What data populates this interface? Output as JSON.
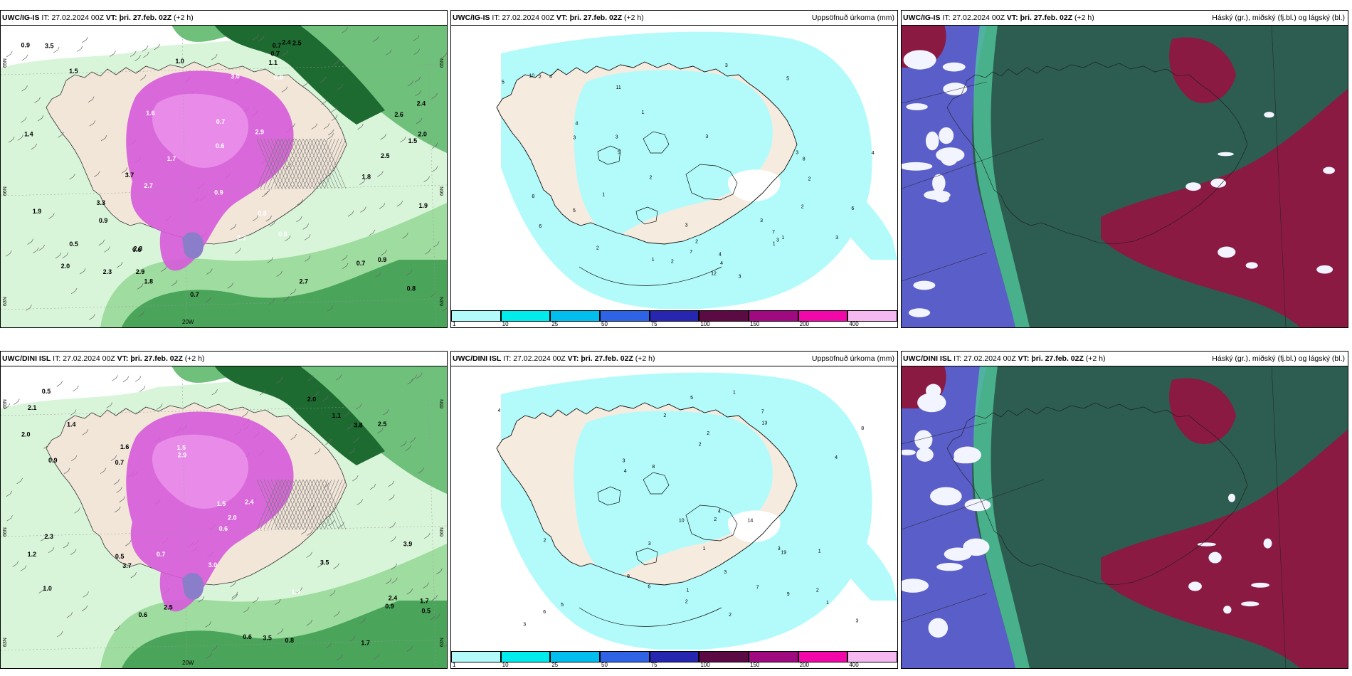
{
  "panels": [
    {
      "id": "p1",
      "model": "UWC/IG-IS",
      "it_label": "IT:",
      "it": "27.02.2024 00Z",
      "vt_label": "VT:",
      "vt": "þri. 27.feb. 02Z",
      "lead": "(+2 h)",
      "title": "",
      "type": "precip-rate",
      "lon_label": "20W",
      "lat_labels": [
        "65N",
        "66N",
        "63N"
      ]
    },
    {
      "id": "p2",
      "model": "UWC/IG-IS",
      "it_label": "IT:",
      "it": "27.02.2024 00Z",
      "vt_label": "VT:",
      "vt": "þri. 27.feb. 02Z",
      "lead": "(+2 h)",
      "title": "Uppsöfnuð úrkoma (mm)",
      "type": "accum"
    },
    {
      "id": "p3",
      "model": "UWC/IG-IS",
      "it_label": "IT:",
      "it": "27.02.2024 00Z",
      "vt_label": "VT:",
      "vt": "þri. 27.feb. 02Z",
      "lead": "(+2 h)",
      "title": "Háský (gr.), miðský (fj.bl.) og lágský (bl.)",
      "type": "cloud"
    },
    {
      "id": "p4",
      "model": "UWC/DINI ISL",
      "it_label": "IT:",
      "it": "27.02.2024 00Z",
      "vt_label": "VT:",
      "vt": "þri. 27.feb. 02Z",
      "lead": "(+2 h)",
      "title": "",
      "type": "precip-rate",
      "lon_label": "20W",
      "lat_labels": [
        "65N",
        "66N",
        "63N"
      ]
    },
    {
      "id": "p5",
      "model": "UWC/DINI ISL",
      "it_label": "IT:",
      "it": "27.02.2024 00Z",
      "vt_label": "VT:",
      "vt": "þri. 27.feb. 02Z",
      "lead": "(+2 h)",
      "title": "Uppsöfnuð úrkoma (mm)",
      "type": "accum"
    },
    {
      "id": "p6",
      "model": "UWC/DINI ISL",
      "it_label": "IT:",
      "it": "27.02.2024 00Z",
      "vt_label": "VT:",
      "vt": "þri. 27.feb. 02Z",
      "lead": "(+2 h)",
      "title": "Háský (gr.), miðský (fj.bl.) og lágský (bl.)",
      "type": "cloud"
    }
  ],
  "colorbar": {
    "ticks": [
      "1",
      "10",
      "25",
      "50",
      "75",
      "100",
      "150",
      "200",
      "400"
    ],
    "colors": [
      "#b3fbfb",
      "#00ecec",
      "#00bfee",
      "#2f63e6",
      "#2626b0",
      "#5b0a44",
      "#a00a80",
      "#f207a8",
      "#f5b8f0"
    ]
  },
  "precip_labels_p1": [
    "0.7",
    "0.9",
    "0.9",
    "1.4",
    "1.7",
    "0.7",
    "0.9",
    "0.5",
    "0.6",
    "0.7",
    "2.0",
    "2.3",
    "3.3",
    "2.4",
    "2.6",
    "2.7",
    "1.9",
    "1.5",
    "3.7",
    "2.5",
    "2.0",
    "2.8",
    "1.8",
    "2.7",
    "3.5",
    "2.5",
    "1.6",
    "1.9",
    "1.5",
    "1.8",
    "2.9",
    "0.8",
    "0.6",
    "1.0",
    "0.8",
    "1.1",
    "0.8",
    "3.0",
    "2.9",
    "2.3",
    "2.4",
    "0.9",
    "0.7",
    "0.6",
    "0.7"
  ],
  "precip_labels_p4": [
    "1.5",
    "1.1",
    "0.7",
    "0.5",
    "1.6",
    "0.5",
    "0.6",
    "2.3",
    "1.9",
    "3.5",
    "2.4",
    "2.5",
    "1.4",
    "2.0",
    "0.6",
    "1.0",
    "3.8",
    "1.5",
    "2.4",
    "3.7",
    "2.9",
    "3.9",
    "2.0",
    "1.7",
    "2.0",
    "3.0",
    "1.2",
    "0.5",
    "0.9",
    "0.7",
    "0.8",
    "0.6",
    "0.9",
    "2.5",
    "2.1",
    "3.5",
    "1.7"
  ],
  "accum_labels_p2": [
    "1",
    "2",
    "3",
    "5",
    "4",
    "6",
    "7",
    "8",
    "3",
    "4",
    "5",
    "3",
    "2",
    "3",
    "5",
    "4",
    "7",
    "3",
    "6",
    "8",
    "4",
    "2",
    "3",
    "5",
    "4",
    "2",
    "3",
    "12",
    "11",
    "3",
    "10",
    "3",
    "2",
    "3",
    "1",
    "1",
    "2",
    "1",
    "2",
    "1"
  ],
  "accum_labels_p5": [
    "6",
    "1",
    "4",
    "1",
    "2",
    "1",
    "2",
    "7",
    "9",
    "8",
    "3",
    "4",
    "6",
    "5",
    "7",
    "3",
    "3",
    "2",
    "10",
    "8",
    "4",
    "5",
    "2",
    "14",
    "19",
    "13",
    "8",
    "2",
    "4",
    "3",
    "1",
    "3",
    "2",
    "3",
    "2",
    "2",
    "1"
  ]
}
